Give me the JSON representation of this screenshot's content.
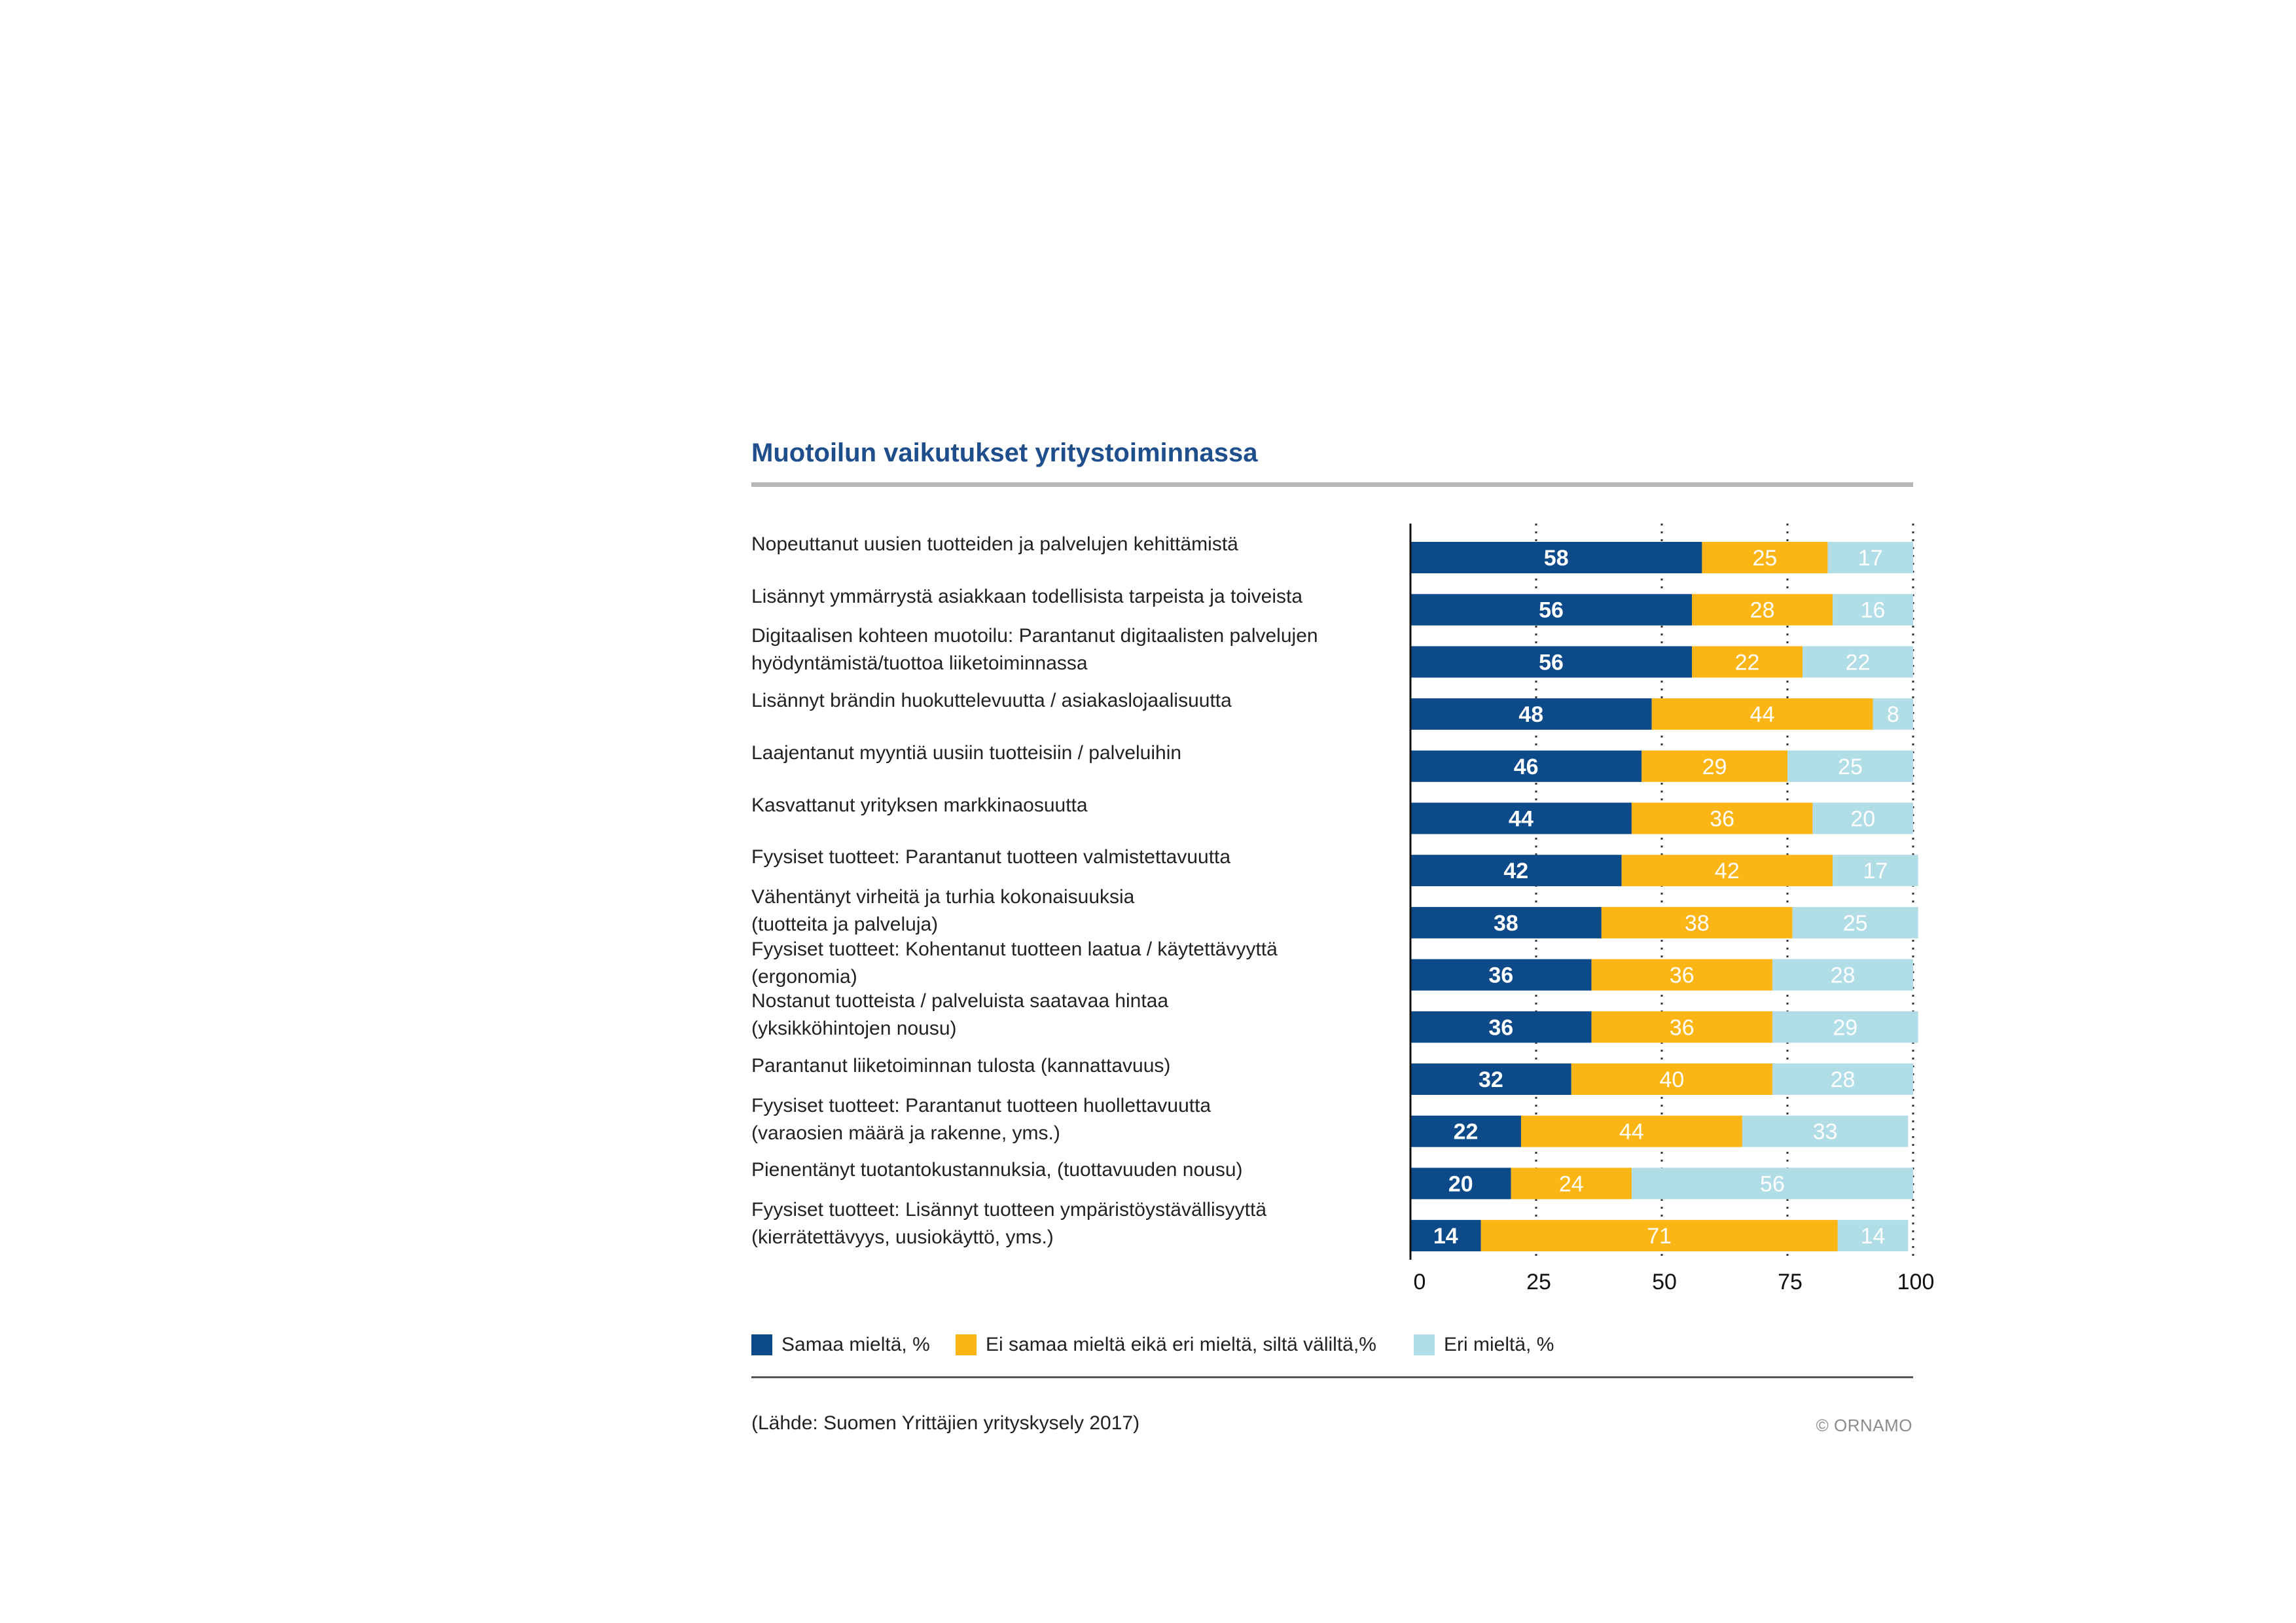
{
  "chart_data": {
    "type": "bar",
    "orientation": "horizontal",
    "stacked": true,
    "title": "Muotoilun vaikutukset yritystoiminnassa",
    "categories": [
      "Nopeuttanut uusien tuotteiden ja palvelujen kehittämistä",
      "Lisännyt ymmärrystä asiakkaan todellisista tarpeista ja toiveista",
      "Digitaalisen kohteen muotoilu: Parantanut digitaalisten palvelujen hyödyntämistä/tuottoa liiketoiminnassa",
      "Lisännyt brändin huokuttelevuutta / asiakaslojaalisuutta",
      "Laajentanut myyntiä uusiin tuotteisiin / palveluihin",
      "Kasvattanut yrityksen markkinaosuutta",
      "Fyysiset tuotteet: Parantanut tuotteen valmistettavuutta",
      "Vähentänyt virheitä ja turhia kokonaisuuksia (tuotteita ja palveluja)",
      "Fyysiset tuotteet: Kohentanut tuotteen laatua / käytettävyyttä (ergonomia)",
      "Nostanut tuotteista / palveluista saatavaa hintaa (yksikköhintojen nousu)",
      "Parantanut liiketoiminnan tulosta (kannattavuus)",
      "Fyysiset tuotteet: Parantanut tuotteen huollettavuutta (varaosien määrä ja rakenne, yms.)",
      "Pienentänyt tuotantokustannuksia, (tuottavuuden nousu)",
      "Fyysiset tuotteet: Lisännyt tuotteen ympäristöystävällisyyttä (kierrätettävyys, uusiokäyttö, yms.)"
    ],
    "category_lines": [
      [
        "Nopeuttanut uusien tuotteiden ja palvelujen kehittämistä"
      ],
      [
        "Lisännyt ymmärrystä asiakkaan todellisista tarpeista ja toiveista"
      ],
      [
        "Digitaalisen kohteen muotoilu: Parantanut digitaalisten palvelujen",
        "hyödyntämistä/tuottoa liiketoiminnassa"
      ],
      [
        "Lisännyt brändin huokuttelevuutta / asiakaslojaalisuutta"
      ],
      [
        "Laajentanut myyntiä uusiin tuotteisiin / palveluihin"
      ],
      [
        "Kasvattanut yrityksen markkinaosuutta"
      ],
      [
        "Fyysiset tuotteet: Parantanut tuotteen valmistettavuutta"
      ],
      [
        "Vähentänyt virheitä ja turhia kokonaisuuksia",
        "(tuotteita ja palveluja)"
      ],
      [
        "Fyysiset tuotteet: Kohentanut tuotteen laatua / käytettävyyttä",
        "(ergonomia)"
      ],
      [
        "Nostanut tuotteista / palveluista saatavaa hintaa",
        "(yksikköhintojen nousu)"
      ],
      [
        "Parantanut liiketoiminnan tulosta (kannattavuus)"
      ],
      [
        "Fyysiset tuotteet: Parantanut tuotteen huollettavuutta",
        "(varaosien määrä ja rakenne, yms.)"
      ],
      [
        "Pienentänyt tuotantokustannuksia, (tuottavuuden nousu)"
      ],
      [
        "Fyysiset tuotteet: Lisännyt tuotteen ympäristöystävällisyyttä",
        "(kierrätettävyys, uusiokäyttö, yms.)"
      ]
    ],
    "series": [
      {
        "name": "Samaa mieltä, %",
        "color": "#0d4a8a",
        "label_color": "#ffffff",
        "values": [
          58,
          56,
          56,
          48,
          46,
          44,
          42,
          38,
          36,
          36,
          32,
          22,
          20,
          14
        ]
      },
      {
        "name": "Ei samaa mieltä eikä eri mieltä, siltä väliltä,%",
        "color": "#fbb514",
        "label_color": "#ffffff",
        "values": [
          25,
          28,
          22,
          44,
          29,
          36,
          42,
          38,
          36,
          36,
          40,
          44,
          24,
          71
        ]
      },
      {
        "name": "Eri mieltä, %",
        "color": "#b1dde6",
        "label_color": "#ffffff",
        "values": [
          17,
          16,
          22,
          8,
          25,
          20,
          17,
          25,
          28,
          29,
          28,
          33,
          56,
          14
        ]
      }
    ],
    "xlim": [
      0,
      100
    ],
    "xticks": [
      "0",
      "25",
      "50",
      "75",
      "100"
    ],
    "grid": "dotted vertical",
    "legend_position": "bottom"
  },
  "source": "(Lähde: Suomen Yrittäjien yrityskysely 2017)",
  "copyright": "© ORNAMO"
}
